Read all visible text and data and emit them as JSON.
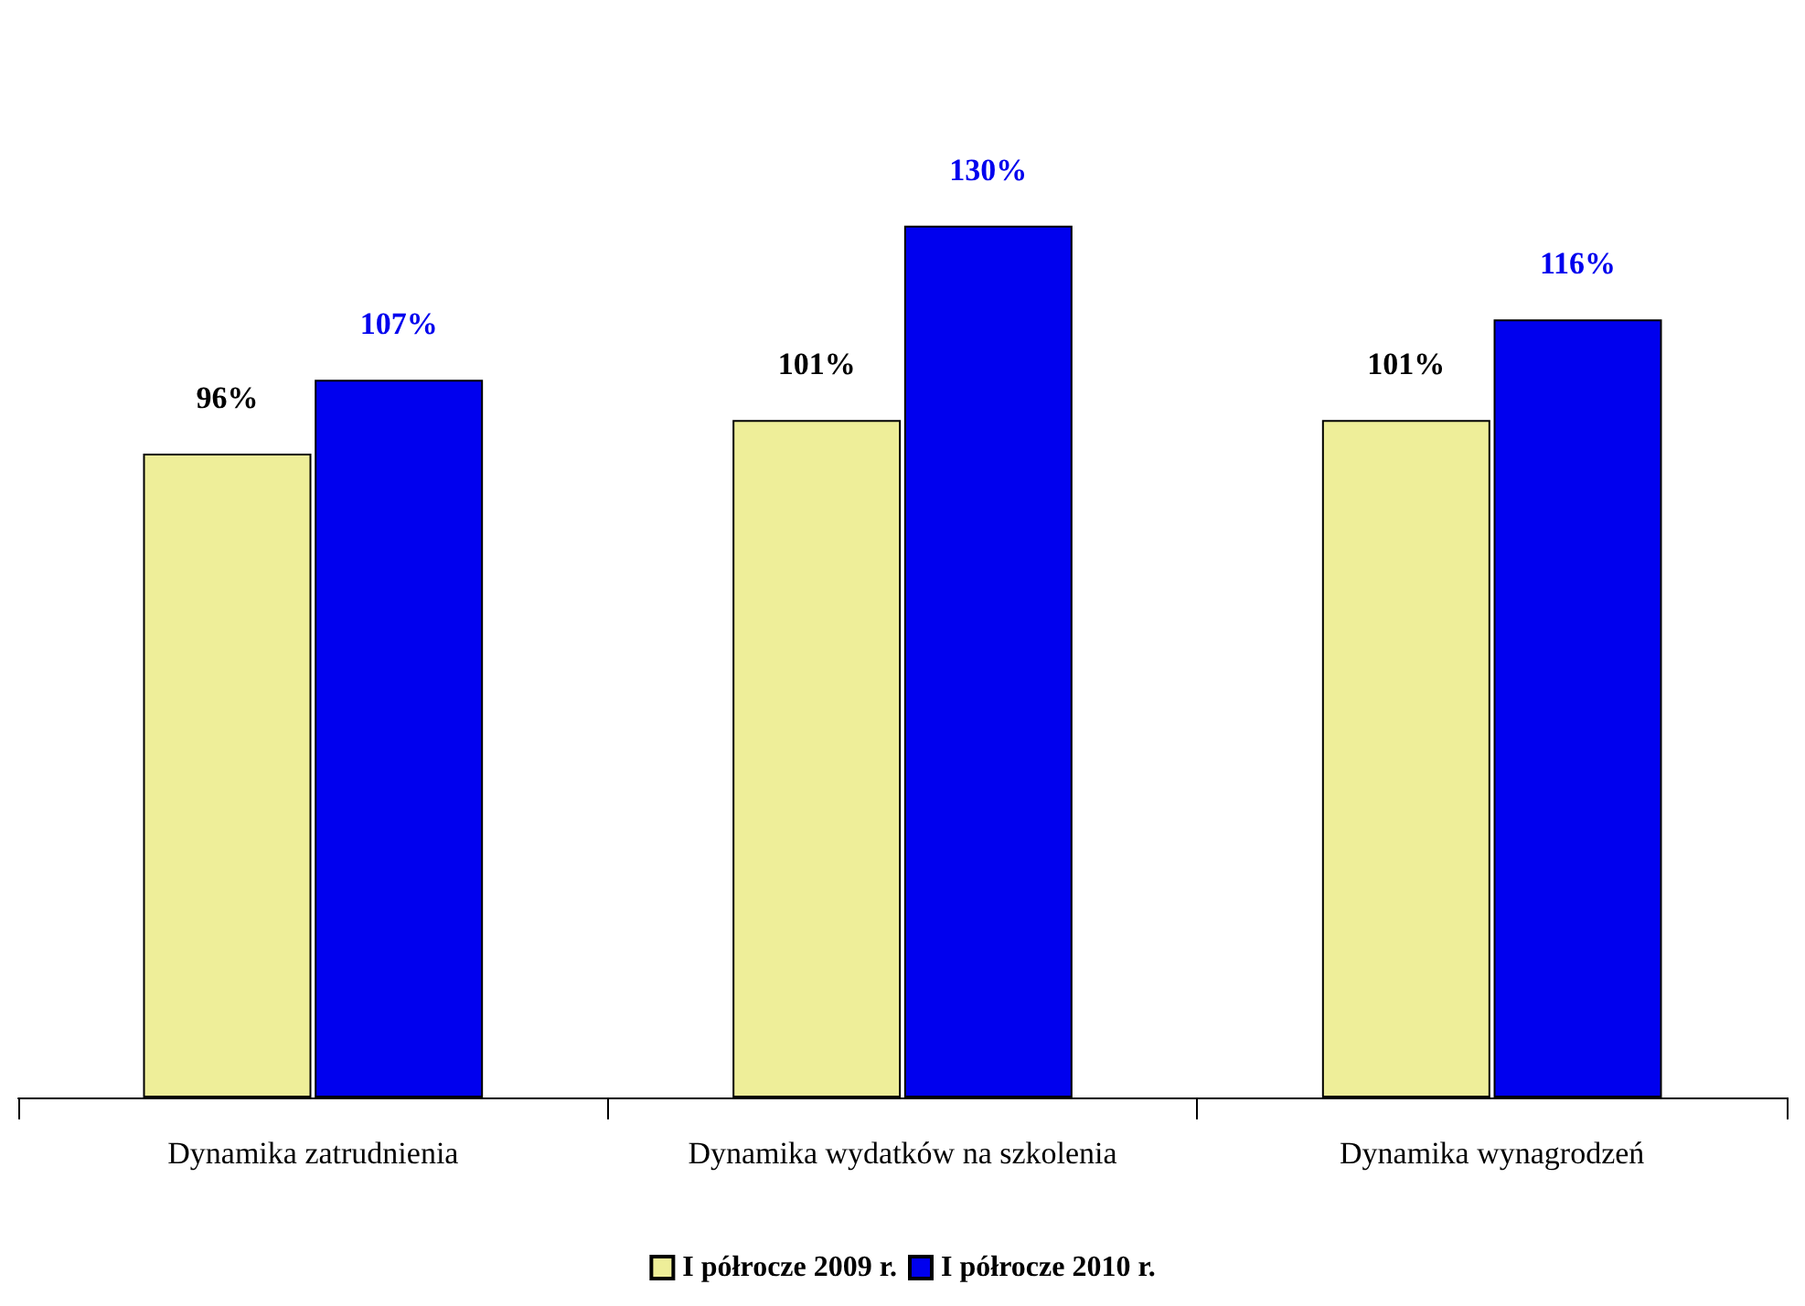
{
  "chart_data": {
    "type": "bar",
    "categories": [
      "Dynamika zatrudnienia",
      "Dynamika wydatków na szkolenia",
      "Dynamika wynagrodzeń"
    ],
    "series": [
      {
        "name": "I półrocze 2009 r.",
        "color": "#eeee99",
        "values": [
          96,
          101,
          101
        ],
        "value_labels": [
          "96%",
          "101%",
          "101%"
        ]
      },
      {
        "name": "I półrocze 2010 r.",
        "color": "#0000ee",
        "values": [
          107,
          130,
          116
        ],
        "value_labels": [
          "107%",
          "130%",
          "116%"
        ]
      }
    ],
    "legend": "bottom"
  }
}
